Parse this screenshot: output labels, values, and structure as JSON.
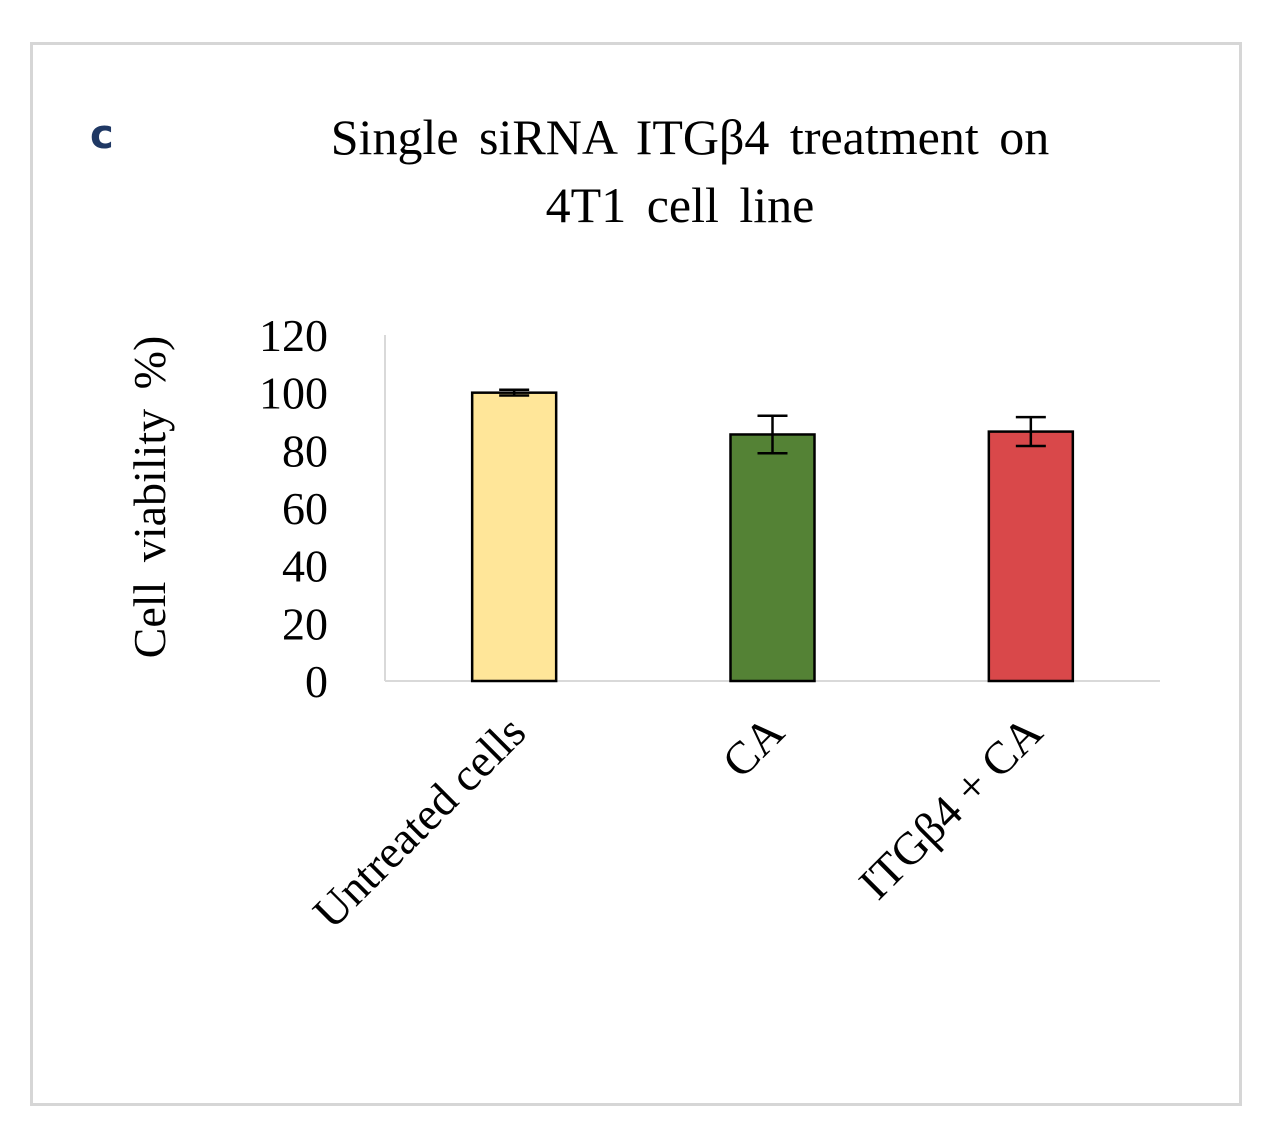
{
  "panel_label": "c",
  "chart_data": {
    "type": "bar",
    "title_lines": [
      "Single siRNA ITGβ4 treatment on",
      "4T1 cell line"
    ],
    "xlabel": "",
    "ylabel": "Cell viability %)",
    "ylim": [
      0,
      120
    ],
    "yticks": [
      0,
      20,
      40,
      60,
      80,
      100,
      120
    ],
    "categories": [
      "Untreated cells",
      "CA",
      "ITGβ4 + CA"
    ],
    "values": [
      100,
      85.5,
      86.5
    ],
    "errors": [
      1,
      6.5,
      5
    ],
    "colors": [
      "#ffe699",
      "#548235",
      "#d9484a"
    ],
    "grid": false
  }
}
